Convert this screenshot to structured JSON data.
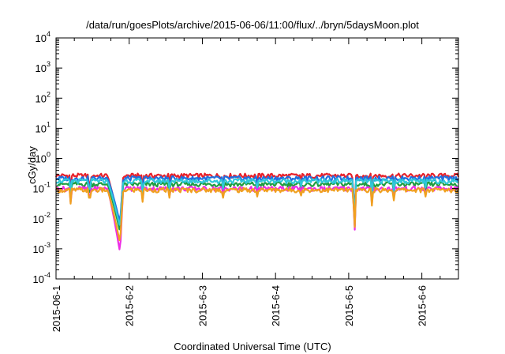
{
  "chart_data": {
    "type": "line",
    "title": "/data/run/goesPlots/archive/2015-06-06/11:00/flux/../bryn/5daysMoon.plot",
    "xlabel": "Coordinated Universal Time (UTC)",
    "ylabel": "cGy/day",
    "xlim": [
      0,
      5.5
    ],
    "ylim": [
      0.0001,
      10000
    ],
    "yscale": "log",
    "grid": false,
    "legend": "none",
    "x_ticks": [
      {
        "x": 0,
        "label": "2015-06-1"
      },
      {
        "x": 1,
        "label": "2015-6-2"
      },
      {
        "x": 2,
        "label": "2015-6-3"
      },
      {
        "x": 3,
        "label": "2015-6-4"
      },
      {
        "x": 4,
        "label": "2015-6-5"
      },
      {
        "x": 5,
        "label": "2015-6-6"
      }
    ],
    "y_ticks": [
      {
        "exp": "-4",
        "value": 0.0001
      },
      {
        "exp": "-3",
        "value": 0.001
      },
      {
        "exp": "-2",
        "value": 0.01
      },
      {
        "exp": "-1",
        "value": 0.1
      },
      {
        "exp": "0",
        "value": 1
      },
      {
        "exp": "1",
        "value": 10
      },
      {
        "exp": "2",
        "value": 100
      },
      {
        "exp": "3",
        "value": 1000
      },
      {
        "exp": "4",
        "value": 10000
      }
    ],
    "tick_base": "10",
    "dips": [
      {
        "x": 0.2,
        "factor": 0.35
      },
      {
        "x": 0.46,
        "factor": 0.55
      },
      {
        "x": 1.18,
        "factor": 0.4
      },
      {
        "x": 1.55,
        "factor": 0.55
      },
      {
        "x": 2.28,
        "factor": 0.55
      },
      {
        "x": 2.75,
        "factor": 0.6
      },
      {
        "x": 3.35,
        "factor": 0.65
      },
      {
        "x": 4.32,
        "factor": 0.3
      },
      {
        "x": 4.62,
        "factor": 0.45
      },
      {
        "x": 5.05,
        "factor": 0.6
      }
    ],
    "series": [
      {
        "color": "#e8222b",
        "base": 0.27,
        "deep_x": [
          0.7,
          0.92
        ],
        "deep_min": 0.0045,
        "spike_x": 4.08,
        "spike_min": 0.004,
        "values_note": ""
      },
      {
        "color": "#1f9d3f",
        "base": 0.14,
        "deep_x": [
          0.7,
          0.92
        ],
        "deep_min": 0.0035,
        "spike_x": 4.08,
        "spike_min": 0.003,
        "values_note": ""
      },
      {
        "color": "#1f6fe0",
        "base": 0.22,
        "deep_x": [
          0.7,
          0.92
        ],
        "deep_min": 0.007,
        "spike_x": 4.08,
        "spike_min": 0.004,
        "values_note": ""
      },
      {
        "color": "#ee2ce6",
        "base": 0.1,
        "deep_x": [
          0.7,
          0.92
        ],
        "deep_min": 0.0007,
        "spike_x": 4.08,
        "spike_min": 0.0023,
        "values_note": ""
      },
      {
        "color": "#30c8d8",
        "base": 0.18,
        "deep_x": [
          0.7,
          0.92
        ],
        "deep_min": 0.005,
        "spike_x": 4.08,
        "spike_min": 0.004,
        "values_note": ""
      },
      {
        "color": "#f0a020",
        "base": 0.09,
        "deep_x": [
          0.7,
          0.92
        ],
        "deep_min": 0.0015,
        "spike_x": 4.08,
        "spike_min": 0.003,
        "values_note": ""
      }
    ]
  }
}
